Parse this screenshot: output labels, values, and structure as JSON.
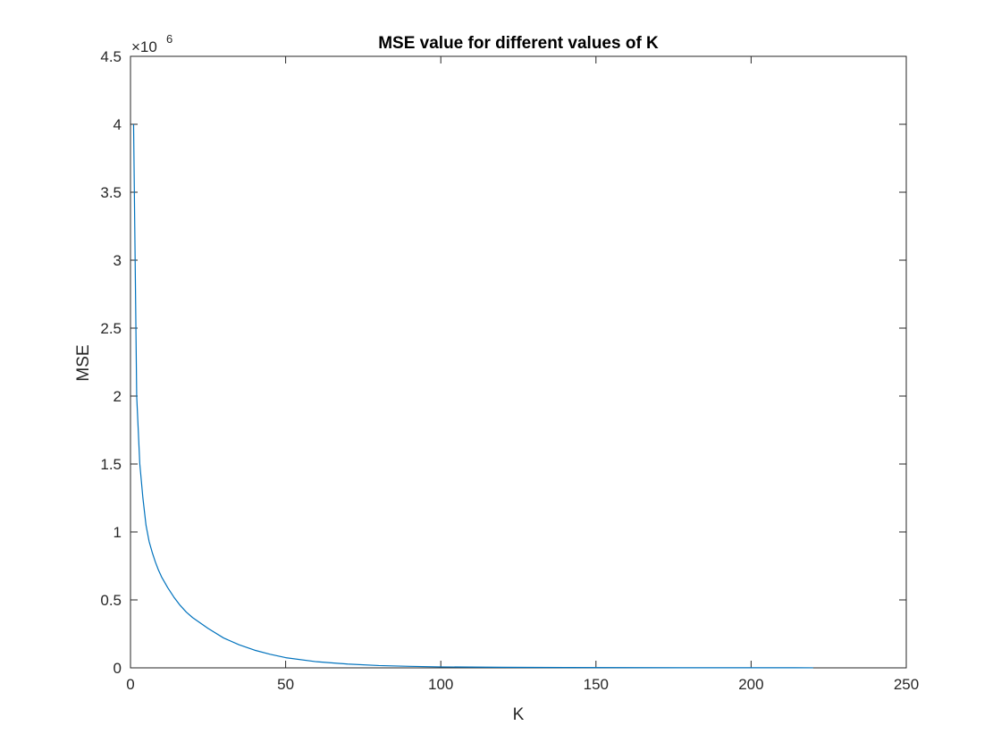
{
  "chart_data": {
    "type": "line",
    "title": "MSE value for different values of K",
    "xlabel": "K",
    "ylabel": "MSE",
    "xlim": [
      0,
      250
    ],
    "ylim": [
      0,
      4500000
    ],
    "xticks": [
      0,
      50,
      100,
      150,
      200,
      250
    ],
    "yticks": [
      0,
      500000,
      1000000,
      1500000,
      2000000,
      2500000,
      3000000,
      3500000,
      4000000,
      4500000
    ],
    "xtick_labels": [
      "0",
      "50",
      "100",
      "150",
      "200",
      "250"
    ],
    "ytick_labels": [
      "0",
      "0.5",
      "1",
      "1.5",
      "2",
      "2.5",
      "3",
      "3.5",
      "4",
      "4.5"
    ],
    "y_exponent": {
      "base": "×10",
      "power": "6"
    },
    "grid": false,
    "legend": "none",
    "series": [
      {
        "color": "#0072BD",
        "x": [
          1,
          2,
          3,
          4,
          5,
          6,
          7,
          8,
          9,
          10,
          12,
          14,
          16,
          18,
          20,
          25,
          30,
          35,
          40,
          45,
          50,
          60,
          70,
          80,
          90,
          100,
          120,
          140,
          160,
          180,
          200,
          220
        ],
        "y": [
          4000000,
          2000000,
          1500000,
          1250000,
          1050000,
          930000,
          850000,
          780000,
          720000,
          670000,
          590000,
          520000,
          460000,
          410000,
          370000,
          290000,
          220000,
          170000,
          130000,
          100000,
          75000,
          45000,
          28000,
          17000,
          11000,
          7000,
          4000,
          2500,
          1500,
          1000,
          700,
          500
        ]
      }
    ]
  }
}
